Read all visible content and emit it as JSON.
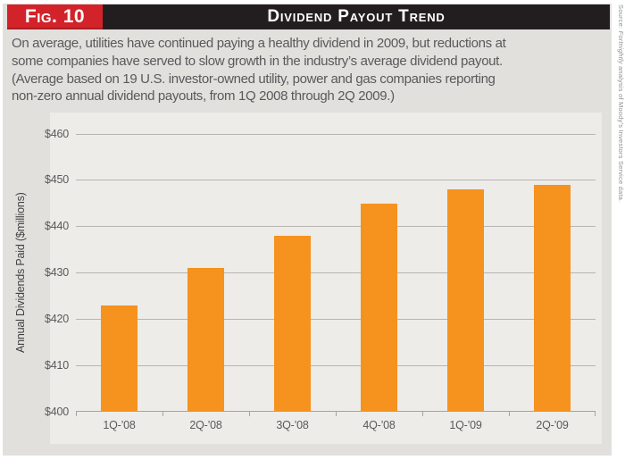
{
  "figure": {
    "label": "Fig. 10",
    "title": "Dividend Payout Trend",
    "source_prefix": "Source: ",
    "source_italic": "Fortnightly",
    "source_suffix": " analysis of Moody’s Investors Service data.",
    "description_lines": [
      "On average, utilities have continued paying a healthy dividend in 2009, but reductions at",
      "some companies have served to slow growth in the industry’s average dividend payout.",
      "(Average based on 19 U.S. investor-owned utility, power and gas companies reporting",
      "non-zero annual dividend payouts, from 1Q 2008 through 2Q 2009.)"
    ]
  },
  "colors": {
    "accent_red": "#d2232a",
    "header_black": "#221e1f",
    "bar_orange": "#f6921e",
    "figure_gray": "#e1e0dc",
    "plot_gray": "#edece8",
    "text_gray": "#59595b"
  },
  "chart_data": {
    "type": "bar",
    "title": "Dividend Payout Trend",
    "categories": [
      "1Q-’08",
      "2Q-’08",
      "3Q-’08",
      "4Q-’08",
      "1Q-’09",
      "2Q-’09"
    ],
    "values": [
      423,
      431,
      438,
      445,
      448,
      449
    ],
    "xlabel": "",
    "ylabel": "Annual Dividends Paid ($millions)",
    "ylim": [
      400,
      460
    ],
    "ytick_step": 10,
    "ytick_labels": [
      "$400",
      "$410",
      "$420",
      "$430",
      "$440",
      "$450",
      "$460"
    ],
    "grid": true,
    "legend": false,
    "bar_color": "#f6921e"
  }
}
